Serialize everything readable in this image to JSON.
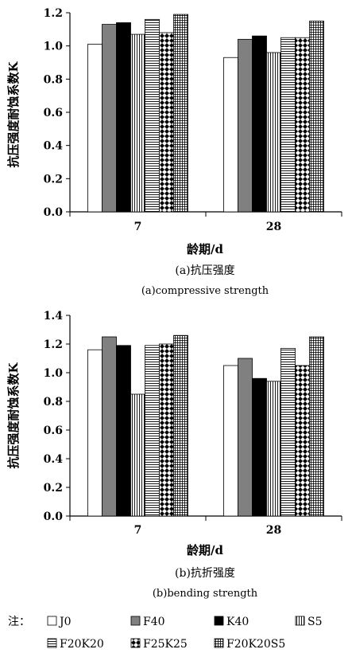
{
  "chart_data": [
    {
      "type": "bar",
      "title": "",
      "caption": "(a)抗压强度",
      "caption_en": "(a)compressive strength",
      "xlabel": "龄期/d",
      "ylabel": "抗压强度耐蚀系数K",
      "ylim": [
        0,
        1.2
      ],
      "yticks": [
        "0.0",
        "0.2",
        "0.4",
        "0.6",
        "0.8",
        "1.0",
        "1.2"
      ],
      "categories": [
        "7",
        "28"
      ],
      "series": [
        {
          "name": "J0",
          "pattern": "white",
          "values": [
            1.01,
            0.93
          ]
        },
        {
          "name": "F40",
          "pattern": "gray",
          "values": [
            1.13,
            1.04
          ]
        },
        {
          "name": "K40",
          "pattern": "black",
          "values": [
            1.14,
            1.06
          ]
        },
        {
          "name": "S5",
          "pattern": "vlines",
          "values": [
            1.07,
            0.96
          ]
        },
        {
          "name": "F20K20",
          "pattern": "hlines",
          "values": [
            1.16,
            1.05
          ]
        },
        {
          "name": "F25K25",
          "pattern": "diamonds",
          "values": [
            1.08,
            1.05
          ]
        },
        {
          "name": "F20K20S5",
          "pattern": "grid",
          "values": [
            1.19,
            1.15
          ]
        }
      ]
    },
    {
      "type": "bar",
      "title": "",
      "caption": "(b)抗折强度",
      "caption_en": "(b)bending strength",
      "xlabel": "龄期/d",
      "ylabel": "抗压强度耐蚀系数K",
      "ylim": [
        0,
        1.4
      ],
      "yticks": [
        "0.0",
        "0.2",
        "0.4",
        "0.6",
        "0.8",
        "1.0",
        "1.2",
        "1.4"
      ],
      "categories": [
        "7",
        "28"
      ],
      "series": [
        {
          "name": "J0",
          "pattern": "white",
          "values": [
            1.16,
            1.05
          ]
        },
        {
          "name": "F40",
          "pattern": "gray",
          "values": [
            1.25,
            1.1
          ]
        },
        {
          "name": "K40",
          "pattern": "black",
          "values": [
            1.19,
            0.96
          ]
        },
        {
          "name": "S5",
          "pattern": "vlines",
          "values": [
            0.85,
            0.94
          ]
        },
        {
          "name": "F20K20",
          "pattern": "hlines",
          "values": [
            1.19,
            1.17
          ]
        },
        {
          "name": "F25K25",
          "pattern": "diamonds",
          "values": [
            1.2,
            1.05
          ]
        },
        {
          "name": "F20K20S5",
          "pattern": "grid",
          "values": [
            1.26,
            1.25
          ]
        }
      ]
    }
  ],
  "legend": {
    "prefix": "注：",
    "items": [
      "J0",
      "F40",
      "K40",
      "S5",
      "F20K20",
      "F25K25",
      "F20K20S5"
    ]
  }
}
